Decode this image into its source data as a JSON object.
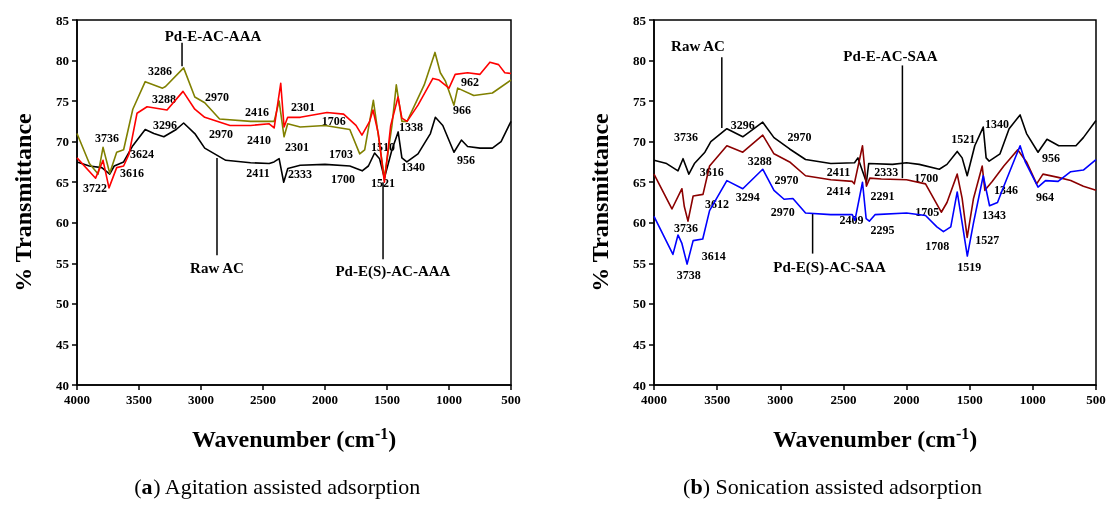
{
  "chart_data": [
    {
      "type": "line",
      "title": "(a) Agitation assisted adsorption",
      "xlabel": "Wavenumber (cm$^{-1}$)",
      "ylabel": "% Transmittance",
      "xlim": [
        4000,
        500
      ],
      "xticks": [
        4000,
        3500,
        3000,
        2500,
        2000,
        1500,
        1000,
        500
      ],
      "ylim": [
        40,
        85
      ],
      "yticks": [
        40,
        45,
        50,
        55,
        60,
        65,
        70,
        75,
        80,
        85
      ],
      "series": [
        {
          "name": "Raw AC",
          "color": "#000000",
          "x": [
            4000,
            3900,
            3800,
            3736,
            3700,
            3624,
            3550,
            3450,
            3380,
            3300,
            3200,
            3140,
            3050,
            2970,
            2800,
            2600,
            2450,
            2411,
            2370,
            2333,
            2300,
            2200,
            2000,
            1800,
            1700,
            1650,
            1600,
            1560,
            1521,
            1460,
            1410,
            1380,
            1340,
            1250,
            1150,
            1110,
            1050,
            960,
            900,
            850,
            750,
            650,
            580,
            500
          ],
          "values": [
            67.5,
            67.0,
            66.8,
            66.0,
            67.0,
            67.5,
            69.5,
            71.5,
            71.0,
            70.6,
            71.5,
            72.3,
            71.0,
            69.2,
            67.7,
            67.4,
            67.3,
            67.5,
            67.9,
            65.0,
            66.7,
            67.1,
            67.2,
            67.0,
            66.4,
            67.0,
            68.6,
            67.9,
            65.5,
            69.0,
            71.2,
            68.0,
            67.5,
            68.5,
            71.0,
            73.0,
            72.0,
            68.7,
            70.2,
            69.4,
            69.2,
            69.2,
            70.0,
            72.5
          ]
        },
        {
          "name": "Pd-E-AC-AAA",
          "color": "#808000",
          "x": [
            4000,
            3900,
            3830,
            3790,
            3736,
            3680,
            3624,
            3550,
            3450,
            3310,
            3286,
            3140,
            3050,
            2970,
            2850,
            2600,
            2410,
            2370,
            2330,
            2301,
            2200,
            2000,
            1800,
            1720,
            1680,
            1610,
            1521,
            1460,
            1425,
            1380,
            1338,
            1200,
            1113,
            1070,
            1030,
            960,
            930,
            800,
            650,
            500
          ],
          "values": [
            71.0,
            67.3,
            66.0,
            69.3,
            66.1,
            68.7,
            69.0,
            74.0,
            77.4,
            76.6,
            76.8,
            79.1,
            75.5,
            74.8,
            72.8,
            72.5,
            72.5,
            75.0,
            70.6,
            72.2,
            71.8,
            72.0,
            71.5,
            68.5,
            69.0,
            75.1,
            65.5,
            72.0,
            77.0,
            72.5,
            72.5,
            77.0,
            81.0,
            78.5,
            77.5,
            74.5,
            76.6,
            75.7,
            76.0,
            77.6
          ]
        },
        {
          "name": "Pd-E(S)-AC-AAA",
          "color": "#ff0000",
          "x": [
            4000,
            3850,
            3790,
            3742,
            3680,
            3624,
            3580,
            3516,
            3435,
            3274,
            3145,
            3050,
            2970,
            2766,
            2600,
            2450,
            2410,
            2357,
            2330,
            2301,
            2200,
            1984,
            1850,
            1750,
            1702,
            1640,
            1613,
            1570,
            1521,
            1470,
            1411,
            1380,
            1338,
            1250,
            1130,
            1080,
            1000,
            950,
            850,
            750,
            670,
            600,
            550,
            500
          ],
          "values": [
            68.0,
            65.5,
            67.7,
            64.3,
            66.8,
            67.0,
            68.5,
            73.5,
            74.3,
            73.9,
            76.2,
            74.0,
            73.0,
            72.0,
            72.0,
            72.2,
            71.7,
            77.2,
            71.8,
            73.0,
            73.0,
            73.6,
            73.4,
            72.0,
            70.8,
            72.5,
            73.9,
            71.0,
            65.0,
            72.0,
            75.5,
            72.9,
            72.5,
            74.5,
            77.8,
            77.6,
            76.6,
            78.3,
            78.5,
            78.3,
            79.8,
            79.5,
            78.5,
            78.4
          ]
        }
      ],
      "annotations": [
        "3286",
        "3288",
        "2970",
        "3296",
        "2970",
        "3736",
        "3624",
        "3616",
        "3722",
        "2416",
        "2410",
        "2411",
        "2301",
        "2301",
        "2333",
        "1706",
        "1703",
        "1700",
        "1510",
        "1521",
        "1338",
        "1340",
        "962",
        "966",
        "956"
      ]
    },
    {
      "type": "line",
      "title": "(b) Sonication assisted adsorption",
      "xlabel": "Wavenumber (cm$^{-1}$)",
      "ylabel": "% Transmittance",
      "xlim": [
        4000,
        500
      ],
      "xticks": [
        4000,
        3500,
        3000,
        2500,
        2000,
        1500,
        1000,
        500
      ],
      "ylim": [
        40,
        85
      ],
      "yticks": [
        40,
        45,
        50,
        55,
        60,
        65,
        70,
        75,
        80,
        85
      ],
      "series": [
        {
          "name": "Raw AC",
          "color": "#000000",
          "x": [
            4000,
            3900,
            3810,
            3770,
            3724,
            3680,
            3597,
            3550,
            3423,
            3297,
            3139,
            3050,
            2926,
            2800,
            2600,
            2412,
            2385,
            2318,
            2300,
            2112,
            2000,
            1900,
            1741,
            1680,
            1599,
            1560,
            1520,
            1460,
            1393,
            1370,
            1346,
            1260,
            1188,
            1101,
            1050,
            959,
            888,
            795,
            659,
            600,
            500
          ],
          "values": [
            67.7,
            67.3,
            66.4,
            67.9,
            66.0,
            67.3,
            68.7,
            70.0,
            71.6,
            70.6,
            72.4,
            70.5,
            69.1,
            67.8,
            67.3,
            67.4,
            68.0,
            65.0,
            67.3,
            67.2,
            67.4,
            67.2,
            66.6,
            67.2,
            68.8,
            68.0,
            65.8,
            69.5,
            71.8,
            68.0,
            67.6,
            68.5,
            71.6,
            73.3,
            71.0,
            68.7,
            70.3,
            69.5,
            69.5,
            70.5,
            72.6
          ]
        },
        {
          "name": "Pd-E-AC-SAA",
          "color": "#8b0000",
          "x": [
            4000,
            3858,
            3779,
            3760,
            3731,
            3690,
            3612,
            3560,
            3423,
            3297,
            3139,
            3050,
            2926,
            2800,
            2600,
            2430,
            2414,
            2349,
            2318,
            2291,
            2200,
            2000,
            1850,
            1725,
            1680,
            1599,
            1560,
            1520,
            1470,
            1401,
            1380,
            1322,
            1230,
            1120,
            1050,
            970,
            920,
            800,
            700,
            600,
            500
          ],
          "values": [
            66.0,
            61.7,
            64.2,
            62.0,
            60.2,
            63.3,
            63.5,
            67.0,
            69.5,
            68.7,
            70.8,
            68.5,
            67.5,
            65.8,
            65.3,
            65.1,
            64.8,
            69.5,
            64.5,
            65.5,
            65.4,
            65.3,
            64.8,
            61.3,
            62.5,
            66.0,
            63.0,
            58.2,
            63.0,
            67.0,
            64.0,
            65.1,
            67.0,
            69.0,
            67.5,
            64.8,
            66.0,
            65.6,
            65.2,
            64.5,
            64.0
          ]
        },
        {
          "name": "Pd-E(S)-AC-SAA",
          "color": "#0000ff",
          "x": [
            4000,
            3850,
            3810,
            3780,
            3738,
            3690,
            3614,
            3560,
            3423,
            3297,
            3139,
            3050,
            2970,
            2900,
            2800,
            2600,
            2430,
            2409,
            2349,
            2320,
            2295,
            2250,
            2000,
            1850,
            1760,
            1708,
            1650,
            1599,
            1560,
            1519,
            1470,
            1393,
            1343,
            1280,
            1230,
            1101,
            1060,
            959,
            900,
            800,
            700,
            600,
            500
          ],
          "values": [
            60.8,
            56.1,
            58.5,
            57.5,
            54.9,
            57.8,
            58.0,
            61.5,
            65.2,
            64.2,
            66.6,
            64.0,
            62.9,
            63.0,
            61.2,
            61.0,
            61.0,
            60.3,
            65.0,
            60.5,
            60.2,
            61.0,
            61.2,
            60.9,
            59.5,
            58.9,
            59.5,
            63.8,
            60.0,
            55.9,
            60.0,
            65.8,
            62.1,
            62.5,
            64.5,
            69.5,
            67.5,
            64.4,
            65.2,
            65.1,
            66.3,
            66.5,
            67.8
          ]
        }
      ],
      "annotations": [
        "3736",
        "3296",
        "2970",
        "3616",
        "3288",
        "2970",
        "3612",
        "3294",
        "2970",
        "3736",
        "3614",
        "3738",
        "2411",
        "2414",
        "2409",
        "2333",
        "2291",
        "2295",
        "1700",
        "1705",
        "1708",
        "1521",
        "1340",
        "1346",
        "1343",
        "1527",
        "1519",
        "956",
        "964"
      ]
    }
  ]
}
